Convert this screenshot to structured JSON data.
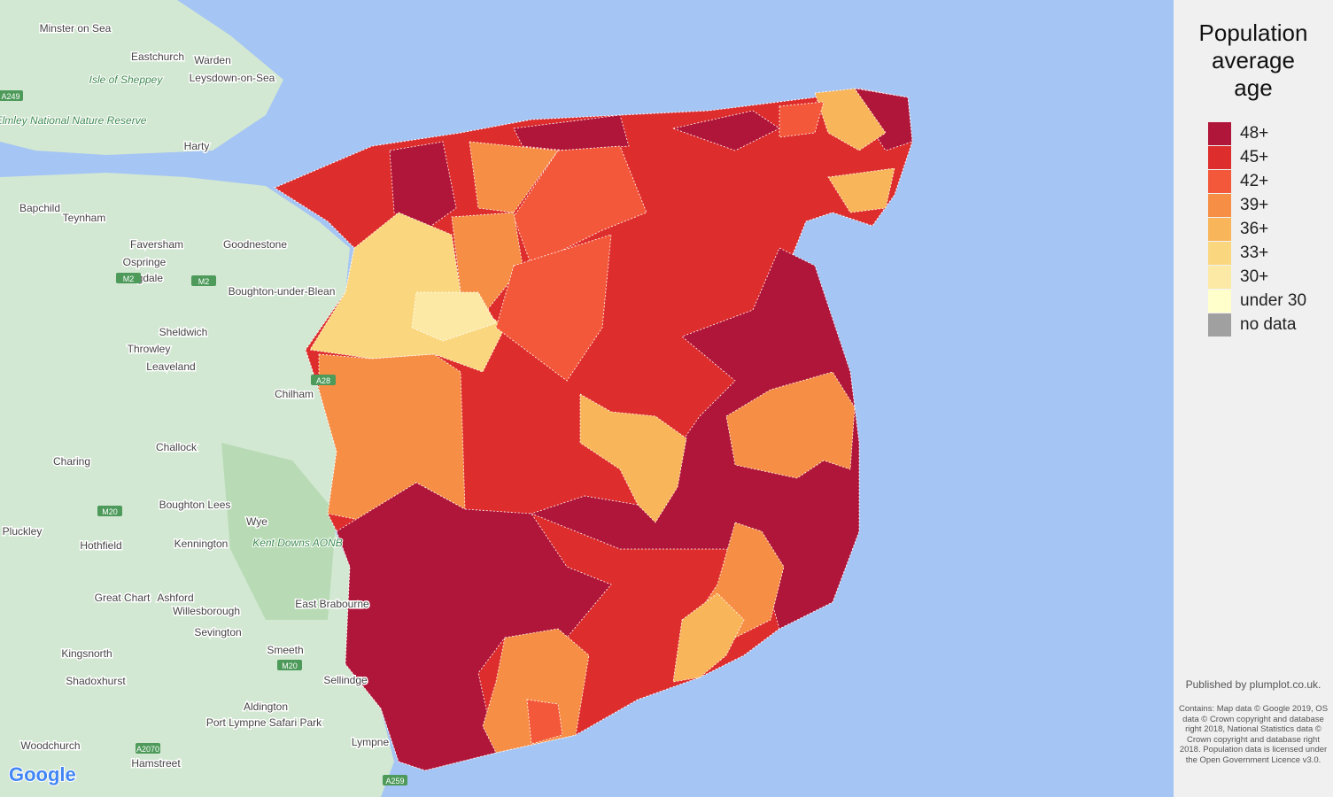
{
  "legend": {
    "title": "Population average age",
    "items": [
      {
        "label": "48+",
        "color": "#b0153a"
      },
      {
        "label": "45+",
        "color": "#de2d2d"
      },
      {
        "label": "42+",
        "color": "#f4583a"
      },
      {
        "label": "39+",
        "color": "#f78e46"
      },
      {
        "label": "36+",
        "color": "#f9b55a"
      },
      {
        "label": "33+",
        "color": "#fad77e"
      },
      {
        "label": "30+",
        "color": "#fde9a6"
      },
      {
        "label": "under 30",
        "color": "#ffffcc"
      },
      {
        "label": "no data",
        "color": "#a0a0a0"
      }
    ]
  },
  "places": [
    "Minster on Sea",
    "Eastchurch",
    "Warden",
    "Leysdown-on-Sea",
    "Harty",
    "Bapchild",
    "Teynham",
    "Faversham",
    "Goodnestone",
    "Ospringe",
    "Brogdale",
    "Boughton-under-Blean",
    "Sheldwich",
    "Throwley",
    "Leaveland",
    "Chilham",
    "Challock",
    "Charing",
    "Boughton Lees",
    "Wye",
    "Kennington",
    "Pluckley",
    "Hothfield",
    "Great Chart",
    "Ashford",
    "Willesborough",
    "Sevington",
    "East Brabourne",
    "Kingsnorth",
    "Smeeth",
    "Sellindge",
    "Shadoxhurst",
    "Aldington",
    "Port Lympne Safari Park",
    "Woodchurch",
    "Lympne",
    "Hamstreet"
  ],
  "green_labels": [
    "Isle of Sheppey",
    "Elmley National Nature Reserve",
    "Kent Downs AONB"
  ],
  "roads": [
    "A249",
    "M2",
    "M2",
    "A28",
    "M20",
    "M20",
    "A2070",
    "A259"
  ],
  "google": "Google",
  "published": "Published by plumplot.co.uk.",
  "attribution": "Contains: Map data © Google 2019, OS data © Crown copyright and database right 2018, National Statistics data © Crown copyright and database right 2018. Population data is licensed under the Open Government Licence v3.0."
}
